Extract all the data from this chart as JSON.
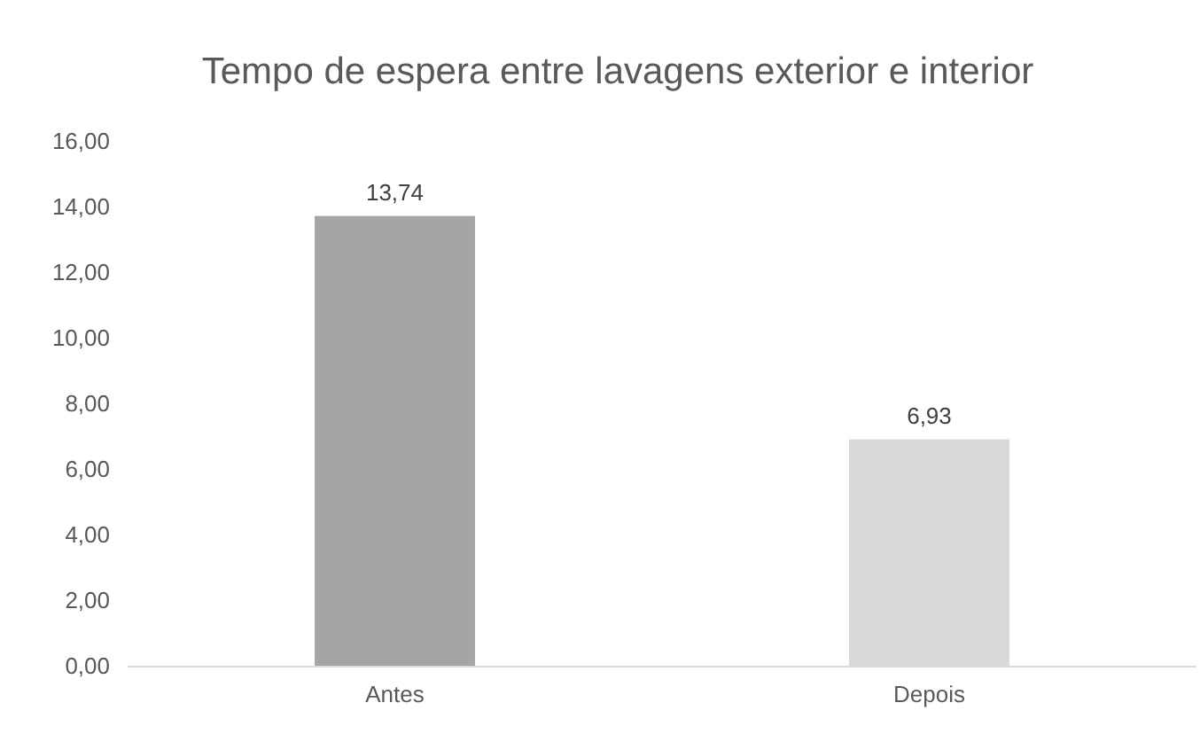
{
  "chart_data": {
    "type": "bar",
    "title": "Tempo de espera entre lavagens exterior e interior",
    "categories": [
      "Antes",
      "Depois"
    ],
    "values": [
      13.74,
      6.93
    ],
    "colors": [
      "#a5a5a5",
      "#d9d9d9"
    ],
    "value_labels": [
      "13,74",
      "6,93"
    ],
    "ylim": [
      0,
      16
    ],
    "yticks": [
      {
        "value": 0,
        "label": "0,00"
      },
      {
        "value": 2,
        "label": "2,00"
      },
      {
        "value": 4,
        "label": "4,00"
      },
      {
        "value": 6,
        "label": "6,00"
      },
      {
        "value": 8,
        "label": "8,00"
      },
      {
        "value": 10,
        "label": "10,00"
      },
      {
        "value": 12,
        "label": "12,00"
      },
      {
        "value": 14,
        "label": "14,00"
      },
      {
        "value": 16,
        "label": "16,00"
      }
    ],
    "grid": false
  }
}
